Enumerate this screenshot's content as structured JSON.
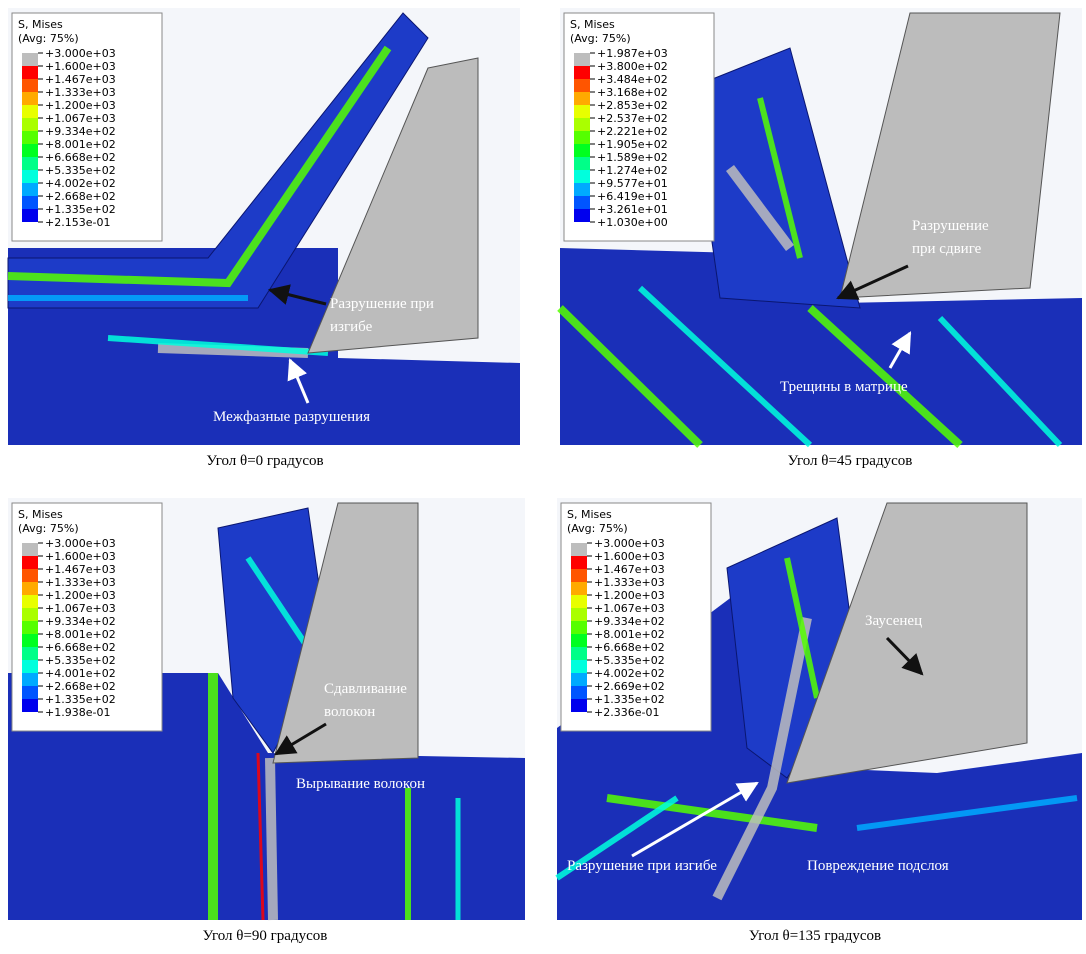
{
  "panels": [
    {
      "legend": {
        "title": "S, Mises",
        "subtitle": "(Avg: 75%)",
        "labels": [
          "+3.000e+03",
          "+1.600e+03",
          "+1.467e+03",
          "+1.333e+03",
          "+1.200e+03",
          "+1.067e+03",
          "+9.334e+02",
          "+8.001e+02",
          "+6.668e+02",
          "+5.335e+02",
          "+4.002e+02",
          "+2.668e+02",
          "+1.335e+02",
          "+2.153e-01"
        ]
      },
      "annotations": [
        [
          "Разрушение при",
          "изгибе"
        ],
        [
          "Межфазные разрушения"
        ]
      ],
      "caption": "Угол θ=0 градусов"
    },
    {
      "legend": {
        "title": "S, Mises",
        "subtitle": "(Avg: 75%)",
        "labels": [
          "+1.987e+03",
          "+3.800e+02",
          "+3.484e+02",
          "+3.168e+02",
          "+2.853e+02",
          "+2.537e+02",
          "+2.221e+02",
          "+1.905e+02",
          "+1.589e+02",
          "+1.274e+02",
          "+9.577e+01",
          "+6.419e+01",
          "+3.261e+01",
          "+1.030e+00"
        ]
      },
      "annotations": [
        [
          "Разрушение",
          "при сдвиге"
        ],
        [
          "Трещины в матрице"
        ]
      ],
      "caption": "Угол θ=45 градусов"
    },
    {
      "legend": {
        "title": "S, Mises",
        "subtitle": "(Avg: 75%)",
        "labels": [
          "+3.000e+03",
          "+1.600e+03",
          "+1.467e+03",
          "+1.333e+03",
          "+1.200e+03",
          "+1.067e+03",
          "+9.334e+02",
          "+8.001e+02",
          "+6.668e+02",
          "+5.335e+02",
          "+4.001e+02",
          "+2.668e+02",
          "+1.335e+02",
          "+1.938e-01"
        ]
      },
      "annotations": [
        [
          "Сдавливание",
          "волокон"
        ],
        [
          "Вырывание волокон"
        ]
      ],
      "caption": "Угол θ=90 градусов"
    },
    {
      "legend": {
        "title": "S, Mises",
        "subtitle": "(Avg: 75%)",
        "labels": [
          "+3.000e+03",
          "+1.600e+03",
          "+1.467e+03",
          "+1.333e+03",
          "+1.200e+03",
          "+1.067e+03",
          "+9.334e+02",
          "+8.001e+02",
          "+6.668e+02",
          "+5.335e+02",
          "+4.002e+02",
          "+2.669e+02",
          "+1.335e+02",
          "+2.336e-01"
        ]
      },
      "annotations": [
        [
          "Заусенец"
        ],
        [
          "Разрушение при изгибе"
        ],
        [
          "Повреждение подслоя"
        ]
      ],
      "caption": "Угол θ=135 градусов"
    }
  ]
}
